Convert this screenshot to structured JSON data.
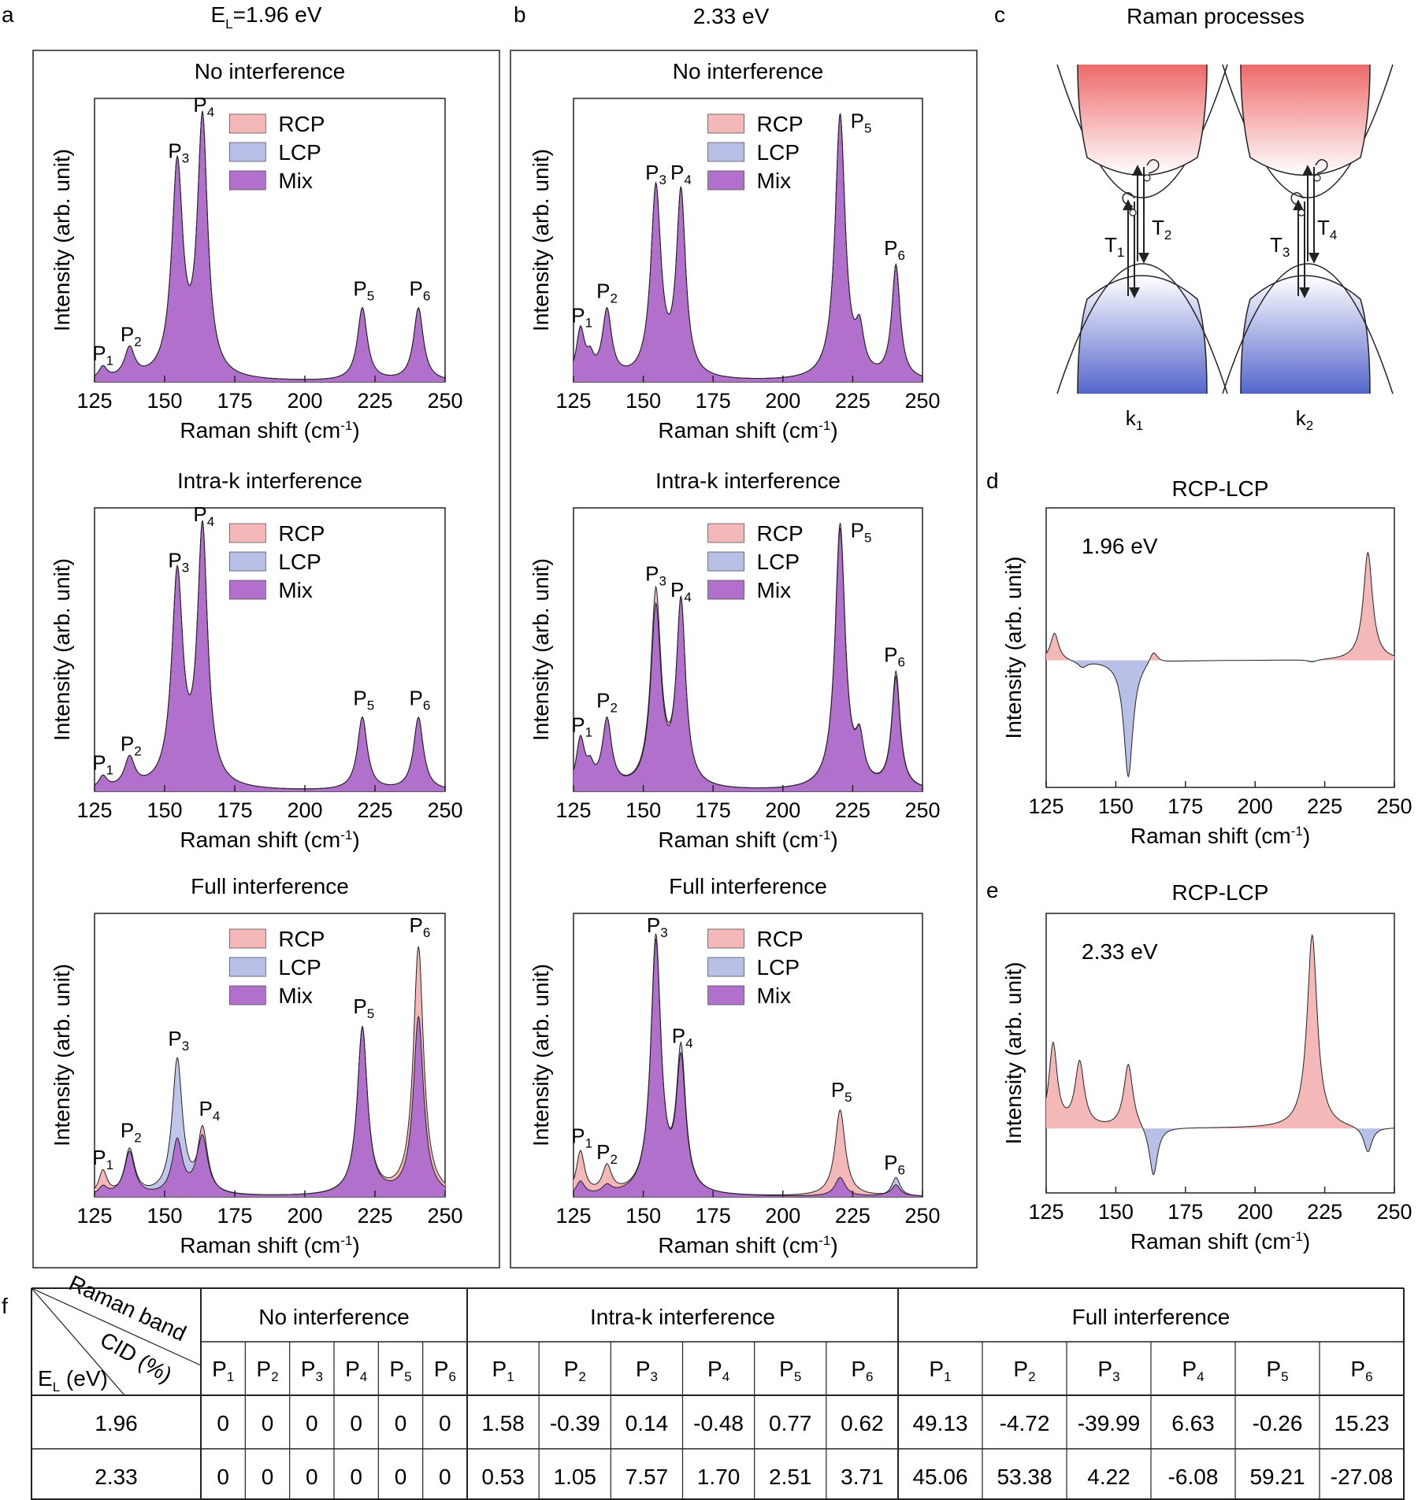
{
  "panel_labels": {
    "a": "a",
    "b": "b",
    "c": "c",
    "d": "d",
    "e": "e",
    "f": "f"
  },
  "col_titles": {
    "a_main": "E",
    "a_sub": "L",
    "a_rest": "=1.96 eV",
    "b": "2.33 eV",
    "c": "Raman processes"
  },
  "colors": {
    "rcp": "#f4b8b8",
    "lcp": "#b8c0e8",
    "mix": "#b070cc",
    "line": "#222222"
  },
  "chart_data": [
    {
      "id": "a1",
      "type": "area",
      "title": "No interference",
      "xlabel": "Raman shift (cm",
      "xlabel_sup": "-1",
      "xlabel_end": ")",
      "ylabel": "Intensity (arb. unit)",
      "xlim": [
        125,
        250
      ],
      "xticks": [
        "125",
        "150",
        "175",
        "200",
        "225",
        "250"
      ],
      "ylim": [
        0,
        1.05
      ],
      "legend": [
        "RCP",
        "LCP",
        "Mix"
      ],
      "peaks": [
        {
          "x": 128,
          "w": 1.8,
          "h": [
            0.045,
            0.045
          ]
        },
        {
          "x": 137.5,
          "w": 2.2,
          "h": [
            0.11,
            0.11
          ]
        },
        {
          "x": 154.5,
          "w": 2.4,
          "h": [
            0.78,
            0.78
          ]
        },
        {
          "x": 163.5,
          "w": 2.2,
          "h": [
            0.95,
            0.95
          ]
        },
        {
          "x": 220.5,
          "w": 2.1,
          "h": [
            0.27,
            0.27
          ]
        },
        {
          "x": 240.5,
          "w": 2.1,
          "h": [
            0.27,
            0.27
          ]
        }
      ],
      "peak_labels": [
        {
          "p": "P",
          "s": "1",
          "x": 128,
          "y": 0.08
        },
        {
          "p": "P",
          "s": "2",
          "x": 138,
          "y": 0.15
        },
        {
          "p": "P",
          "s": "3",
          "x": 155,
          "y": 0.83
        },
        {
          "p": "P",
          "s": "4",
          "x": 164,
          "y": 1.0
        },
        {
          "p": "P",
          "s": "5",
          "x": 221,
          "y": 0.32
        },
        {
          "p": "P",
          "s": "6",
          "x": 241,
          "y": 0.32
        }
      ]
    },
    {
      "id": "a2",
      "type": "area",
      "title": "Intra-k interference",
      "xlabel": "Raman shift (cm",
      "xlabel_sup": "-1",
      "xlabel_end": ")",
      "ylabel": "Intensity (arb. unit)",
      "xlim": [
        125,
        250
      ],
      "xticks": [
        "125",
        "150",
        "175",
        "200",
        "225",
        "250"
      ],
      "ylim": [
        0,
        1.05
      ],
      "legend": [
        "RCP",
        "LCP",
        "Mix"
      ],
      "peaks": [
        {
          "x": 128,
          "w": 1.8,
          "h": [
            0.045,
            0.045
          ]
        },
        {
          "x": 137.5,
          "w": 2.2,
          "h": [
            0.11,
            0.11
          ]
        },
        {
          "x": 154.5,
          "w": 2.4,
          "h": [
            0.78,
            0.78
          ]
        },
        {
          "x": 163.5,
          "w": 2.2,
          "h": [
            0.95,
            0.95
          ]
        },
        {
          "x": 220.5,
          "w": 2.1,
          "h": [
            0.27,
            0.27
          ]
        },
        {
          "x": 240.5,
          "w": 2.1,
          "h": [
            0.27,
            0.27
          ]
        }
      ],
      "peak_labels": [
        {
          "p": "P",
          "s": "1",
          "x": 128,
          "y": 0.08
        },
        {
          "p": "P",
          "s": "2",
          "x": 138,
          "y": 0.15
        },
        {
          "p": "P",
          "s": "3",
          "x": 155,
          "y": 0.83
        },
        {
          "p": "P",
          "s": "4",
          "x": 164,
          "y": 1.0
        },
        {
          "p": "P",
          "s": "5",
          "x": 221,
          "y": 0.32
        },
        {
          "p": "P",
          "s": "6",
          "x": 241,
          "y": 0.32
        }
      ]
    },
    {
      "id": "a3",
      "type": "area",
      "title": "Full interference",
      "xlabel": "Raman shift (cm",
      "xlabel_sup": "-1",
      "xlabel_end": ")",
      "ylabel": "Intensity (arb. unit)",
      "xlim": [
        125,
        250
      ],
      "xticks": [
        "125",
        "150",
        "175",
        "200",
        "225",
        "250"
      ],
      "ylim": [
        0,
        1.05
      ],
      "legend": [
        "RCP",
        "LCP",
        "Mix"
      ],
      "peaks": [
        {
          "x": 128,
          "w": 1.8,
          "h": [
            0.09,
            0.03
          ]
        },
        {
          "x": 137.5,
          "w": 2.2,
          "h": [
            0.16,
            0.17
          ]
        },
        {
          "x": 154.5,
          "w": 2.2,
          "h": [
            0.2,
            0.5
          ]
        },
        {
          "x": 163.5,
          "w": 2.2,
          "h": [
            0.25,
            0.2
          ]
        },
        {
          "x": 220.5,
          "w": 2.2,
          "h": [
            0.62,
            0.62
          ]
        },
        {
          "x": 240.5,
          "w": 2.2,
          "h": [
            0.92,
            0.66
          ]
        }
      ],
      "peak_labels": [
        {
          "p": "P",
          "s": "1",
          "x": 128,
          "y": 0.12
        },
        {
          "p": "P",
          "s": "2",
          "x": 138,
          "y": 0.22
        },
        {
          "p": "P",
          "s": "3",
          "x": 155,
          "y": 0.56
        },
        {
          "p": "P",
          "s": "4",
          "x": 166,
          "y": 0.3
        },
        {
          "p": "P",
          "s": "5",
          "x": 221,
          "y": 0.68
        },
        {
          "p": "P",
          "s": "6",
          "x": 241,
          "y": 0.98
        }
      ]
    },
    {
      "id": "b1",
      "type": "area",
      "title": "No interference",
      "xlabel": "Raman shift (cm",
      "xlabel_sup": "-1",
      "xlabel_end": ")",
      "ylabel": "Intensity (arb. unit)",
      "xlim": [
        125,
        250
      ],
      "xticks": [
        "125",
        "150",
        "175",
        "200",
        "225",
        "250"
      ],
      "ylim": [
        0,
        1.05
      ],
      "legend": [
        "RCP",
        "LCP",
        "Mix"
      ],
      "peaks": [
        {
          "x": 127.5,
          "w": 1.8,
          "h": [
            0.18,
            0.18
          ]
        },
        {
          "x": 131,
          "w": 1.5,
          "h": [
            0.06,
            0.06
          ]
        },
        {
          "x": 137,
          "w": 2.0,
          "h": [
            0.25,
            0.25
          ]
        },
        {
          "x": 154.5,
          "w": 2.2,
          "h": [
            0.7,
            0.7
          ]
        },
        {
          "x": 163.5,
          "w": 2.0,
          "h": [
            0.68,
            0.68
          ]
        },
        {
          "x": 220.5,
          "w": 2.2,
          "h": [
            0.98,
            0.98
          ]
        },
        {
          "x": 227.5,
          "w": 1.8,
          "h": [
            0.15,
            0.15
          ]
        },
        {
          "x": 240.5,
          "w": 1.8,
          "h": [
            0.42,
            0.42
          ]
        }
      ],
      "peak_labels": [
        {
          "p": "P",
          "s": "1",
          "x": 128,
          "y": 0.22
        },
        {
          "p": "P",
          "s": "2",
          "x": 137,
          "y": 0.31
        },
        {
          "p": "P",
          "s": "3",
          "x": 154.5,
          "y": 0.75
        },
        {
          "p": "P",
          "s": "4",
          "x": 163.5,
          "y": 0.75
        },
        {
          "p": "P",
          "s": "5",
          "x": 228,
          "y": 0.94
        },
        {
          "p": "P",
          "s": "6",
          "x": 240,
          "y": 0.47
        }
      ]
    },
    {
      "id": "b2",
      "type": "area",
      "title": "Intra-k interference",
      "xlabel": "Raman shift (cm",
      "xlabel_sup": "-1",
      "xlabel_end": ")",
      "ylabel": "Intensity (arb. unit)",
      "xlim": [
        125,
        250
      ],
      "xticks": [
        "125",
        "150",
        "175",
        "200",
        "225",
        "250"
      ],
      "ylim": [
        0,
        1.05
      ],
      "legend": [
        "RCP",
        "LCP",
        "Mix"
      ],
      "peaks": [
        {
          "x": 127.5,
          "w": 1.8,
          "h": [
            0.18,
            0.18
          ]
        },
        {
          "x": 131,
          "w": 1.5,
          "h": [
            0.06,
            0.06
          ]
        },
        {
          "x": 137,
          "w": 2.0,
          "h": [
            0.25,
            0.25
          ]
        },
        {
          "x": 154.5,
          "w": 2.2,
          "h": [
            0.72,
            0.66
          ]
        },
        {
          "x": 163.5,
          "w": 2.0,
          "h": [
            0.68,
            0.68
          ]
        },
        {
          "x": 220.5,
          "w": 2.2,
          "h": [
            0.98,
            0.96
          ]
        },
        {
          "x": 227.5,
          "w": 1.8,
          "h": [
            0.15,
            0.15
          ]
        },
        {
          "x": 240.5,
          "w": 1.8,
          "h": [
            0.43,
            0.41
          ]
        }
      ],
      "peak_labels": [
        {
          "p": "P",
          "s": "1",
          "x": 128,
          "y": 0.22
        },
        {
          "p": "P",
          "s": "2",
          "x": 137,
          "y": 0.31
        },
        {
          "p": "P",
          "s": "3",
          "x": 154.5,
          "y": 0.78
        },
        {
          "p": "P",
          "s": "4",
          "x": 163.5,
          "y": 0.72
        },
        {
          "p": "P",
          "s": "5",
          "x": 228,
          "y": 0.94
        },
        {
          "p": "P",
          "s": "6",
          "x": 240,
          "y": 0.48
        }
      ]
    },
    {
      "id": "b3",
      "type": "area",
      "title": "Full interference",
      "xlabel": "Raman shift (cm",
      "xlabel_sup": "-1",
      "xlabel_end": ")",
      "ylabel": "Intensity (arb. unit)",
      "xlim": [
        125,
        250
      ],
      "xticks": [
        "125",
        "150",
        "175",
        "200",
        "225",
        "250"
      ],
      "ylim": [
        0,
        1.05
      ],
      "legend": [
        "RCP",
        "LCP",
        "Mix"
      ],
      "peaks": [
        {
          "x": 127.5,
          "w": 1.8,
          "h": [
            0.16,
            0.05
          ]
        },
        {
          "x": 137,
          "w": 2.0,
          "h": [
            0.1,
            0.03
          ]
        },
        {
          "x": 154.5,
          "w": 2.2,
          "h": [
            0.95,
            0.93
          ]
        },
        {
          "x": 163.5,
          "w": 2.0,
          "h": [
            0.48,
            0.52
          ]
        },
        {
          "x": 220.5,
          "w": 2.2,
          "h": [
            0.32,
            0.07
          ]
        },
        {
          "x": 240.5,
          "w": 1.8,
          "h": [
            0.04,
            0.07
          ]
        }
      ],
      "peak_labels": [
        {
          "p": "P",
          "s": "1",
          "x": 128,
          "y": 0.2
        },
        {
          "p": "P",
          "s": "2",
          "x": 137,
          "y": 0.14
        },
        {
          "p": "P",
          "s": "3",
          "x": 155,
          "y": 0.98
        },
        {
          "p": "P",
          "s": "4",
          "x": 164,
          "y": 0.57
        },
        {
          "p": "P",
          "s": "5",
          "x": 221,
          "y": 0.37
        },
        {
          "p": "P",
          "s": "6",
          "x": 240,
          "y": 0.1
        }
      ]
    },
    {
      "id": "d",
      "type": "area",
      "title": "RCP-LCP",
      "annotation": "1.96 eV",
      "xlabel": "Raman shift (cm",
      "xlabel_sup": "-1",
      "xlabel_end": ")",
      "ylabel": "Intensity (arb. unit)",
      "xlim": [
        125,
        250
      ],
      "xticks": [
        "125",
        "150",
        "175",
        "200",
        "225",
        "250"
      ],
      "ylim": [
        -1.0,
        1.2
      ],
      "peaks": [
        {
          "x": 128,
          "w": 1.8,
          "h": 0.22
        },
        {
          "x": 138,
          "w": 2.0,
          "h": -0.05
        },
        {
          "x": 154.5,
          "w": 2.0,
          "h": -0.92
        },
        {
          "x": 163.5,
          "w": 1.8,
          "h": 0.1
        },
        {
          "x": 220.5,
          "w": 2.0,
          "h": -0.02
        },
        {
          "x": 240.5,
          "w": 2.0,
          "h": 0.85
        }
      ]
    },
    {
      "id": "e",
      "type": "area",
      "title": "RCP-LCP",
      "annotation": "2.33 eV",
      "xlabel": "Raman shift (cm",
      "xlabel_sup": "-1",
      "xlabel_end": ")",
      "ylabel": "Intensity (arb. unit)",
      "xlim": [
        125,
        250
      ],
      "xticks": [
        "125",
        "150",
        "175",
        "200",
        "225",
        "250"
      ],
      "ylim": [
        -0.45,
        1.5
      ],
      "peaks": [
        {
          "x": 127.5,
          "w": 1.8,
          "h": 0.58
        },
        {
          "x": 137,
          "w": 2.0,
          "h": 0.45
        },
        {
          "x": 154.5,
          "w": 2.0,
          "h": 0.45
        },
        {
          "x": 163.5,
          "w": 1.8,
          "h": -0.35
        },
        {
          "x": 220.5,
          "w": 2.2,
          "h": 1.35
        },
        {
          "x": 240.5,
          "w": 1.8,
          "h": -0.18
        }
      ]
    }
  ],
  "diagram": {
    "labels": [
      "T",
      "T",
      "T",
      "T"
    ],
    "subs": [
      "1",
      "2",
      "3",
      "4"
    ],
    "k_labels": [
      "k",
      "k"
    ],
    "k_subs": [
      "1",
      "2"
    ]
  },
  "table": {
    "header_corner": {
      "raman": "Raman band",
      "cid": "CID (%)",
      "el": "E",
      "el_sub": "L",
      "el_rest": " (eV)"
    },
    "groups": [
      "No interference",
      "Intra-k interference",
      "Full interference"
    ],
    "bands": [
      "P1",
      "P2",
      "P3",
      "P4",
      "P5",
      "P6"
    ],
    "band_p": "P",
    "band_subs": [
      "1",
      "2",
      "3",
      "4",
      "5",
      "6"
    ],
    "rows": [
      {
        "el": "1.96",
        "no": [
          "0",
          "0",
          "0",
          "0",
          "0",
          "0"
        ],
        "intra": [
          "1.58",
          "-0.39",
          "0.14",
          "-0.48",
          "0.77",
          "0.62"
        ],
        "full": [
          "49.13",
          "-4.72",
          "-39.99",
          "6.63",
          "-0.26",
          "15.23"
        ]
      },
      {
        "el": "2.33",
        "no": [
          "0",
          "0",
          "0",
          "0",
          "0",
          "0"
        ],
        "intra": [
          "0.53",
          "1.05",
          "7.57",
          "1.70",
          "2.51",
          "3.71"
        ],
        "full": [
          "45.06",
          "53.38",
          "4.22",
          "-6.08",
          "59.21",
          "-27.08"
        ]
      }
    ]
  }
}
